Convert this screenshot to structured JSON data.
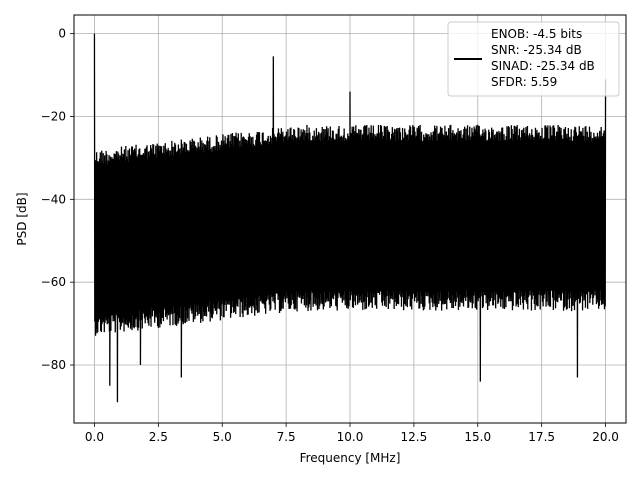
{
  "chart_data": {
    "type": "line",
    "title": "",
    "xlabel": "Frequency [MHz]",
    "ylabel": "PSD [dB]",
    "xlim": [
      -0.8,
      20.8
    ],
    "ylim": [
      -94,
      4.5
    ],
    "xticks": [
      0.0,
      2.5,
      5.0,
      7.5,
      10.0,
      12.5,
      15.0,
      17.5,
      20.0
    ],
    "xtick_labels": [
      "0.0",
      "2.5",
      "5.0",
      "7.5",
      "10.0",
      "12.5",
      "15.0",
      "17.5",
      "20.0"
    ],
    "yticks": [
      0,
      -20,
      -40,
      -60,
      -80
    ],
    "ytick_labels": [
      "0",
      "−20",
      "−40",
      "−60",
      "−80"
    ],
    "grid": true,
    "legend_position": "top-right",
    "series": [
      {
        "name": "",
        "color": "#000000",
        "x_range": [
          0,
          20
        ],
        "noise_ceiling": [
          -28,
          -22
        ],
        "noise_floor": [
          -68,
          -62
        ],
        "peaks": [
          {
            "x": 0.0,
            "y": 0
          },
          {
            "x": 7.0,
            "y": -5.5
          },
          {
            "x": 10.0,
            "y": -14
          },
          {
            "x": 20.0,
            "y": -11
          }
        ],
        "dips": [
          {
            "x": 0.6,
            "y": -85
          },
          {
            "x": 0.9,
            "y": -89
          },
          {
            "x": 1.8,
            "y": -80
          },
          {
            "x": 3.4,
            "y": -83
          },
          {
            "x": 15.1,
            "y": -84
          },
          {
            "x": 18.9,
            "y": -83
          }
        ]
      }
    ],
    "legend": {
      "lines": [
        "ENOB: -4.5 bits",
        "SNR: -25.34 dB",
        "SINAD: -25.34 dB",
        "SFDR: 5.59"
      ]
    }
  }
}
